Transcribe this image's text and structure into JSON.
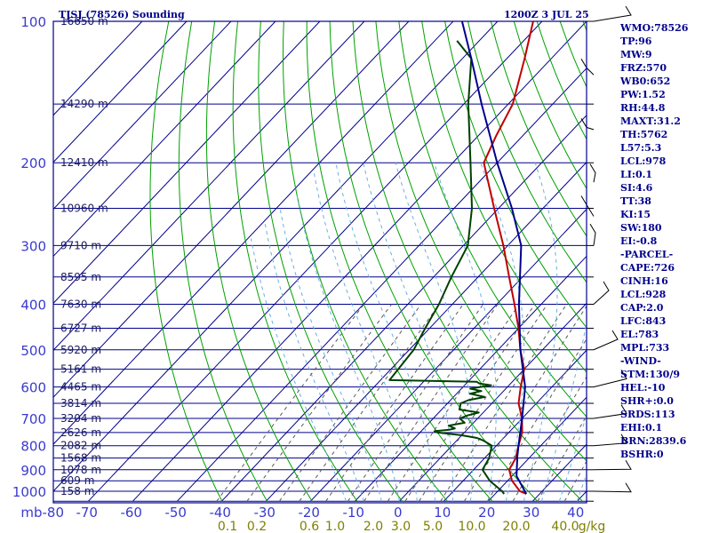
{
  "header": {
    "station": "TJSJ (78526) Sounding",
    "time": "1200Z  3 JUL 25"
  },
  "chart_data": {
    "type": "line",
    "chart_kind": "Skew-T log-P sounding",
    "y_axis": {
      "scale": "log",
      "pressure_ticks": [
        100,
        200,
        300,
        400,
        500,
        600,
        700,
        800,
        900,
        1000
      ],
      "ylim": [
        100,
        1050
      ]
    },
    "x_axis": {
      "temperature_ticks": [
        -80,
        -70,
        -60,
        -50,
        -40,
        -30,
        -20,
        -10,
        0,
        10,
        20,
        30,
        40
      ],
      "tick_labels": [
        "mb-80",
        "-70",
        "-60",
        "-50",
        "-40",
        "-30",
        "-20",
        "-10",
        "0",
        "10",
        "20",
        "30",
        "40"
      ],
      "mixing_ratio_labels": [
        "0.1",
        "0.2",
        "0.6",
        "1.0",
        "2.0",
        "3.0",
        "5.0",
        "10.0",
        "20.0",
        "40.0",
        "g/kg"
      ]
    },
    "heights": [
      {
        "p": 100,
        "label": "16650 m"
      },
      {
        "p": 150,
        "label": "14290 m"
      },
      {
        "p": 200,
        "label": "12410 m"
      },
      {
        "p": 250,
        "label": "10960 m"
      },
      {
        "p": 300,
        "label": "9710 m"
      },
      {
        "p": 350,
        "label": "8595 m"
      },
      {
        "p": 400,
        "label": "7630 m"
      },
      {
        "p": 450,
        "label": "6727 m"
      },
      {
        "p": 500,
        "label": "5920 m"
      },
      {
        "p": 550,
        "label": "5161 m"
      },
      {
        "p": 600,
        "label": "4465 m"
      },
      {
        "p": 650,
        "label": "3814 m"
      },
      {
        "p": 700,
        "label": "3204 m"
      },
      {
        "p": 750,
        "label": "2626 m"
      },
      {
        "p": 800,
        "label": "2082 m"
      },
      {
        "p": 850,
        "label": "1568 m"
      },
      {
        "p": 900,
        "label": "1078 m"
      },
      {
        "p": 950,
        "label": "609 m"
      },
      {
        "p": 1000,
        "label": "158 m"
      }
    ],
    "series": [
      {
        "role": "temperature",
        "color": "#c00000",
        "points": [
          [
            1013,
            27
          ],
          [
            1000,
            25
          ],
          [
            950,
            21
          ],
          [
            900,
            18
          ],
          [
            850,
            17
          ],
          [
            800,
            15
          ],
          [
            750,
            13
          ],
          [
            700,
            10
          ],
          [
            650,
            6
          ],
          [
            600,
            3
          ],
          [
            550,
            0
          ],
          [
            500,
            -5
          ],
          [
            450,
            -10
          ],
          [
            400,
            -16
          ],
          [
            350,
            -23
          ],
          [
            300,
            -31
          ],
          [
            250,
            -41
          ],
          [
            200,
            -53
          ],
          [
            175,
            -56
          ],
          [
            150,
            -59
          ],
          [
            120,
            -66
          ],
          [
            100,
            -72
          ]
        ]
      },
      {
        "role": "dewpoint",
        "color": "#004000",
        "points": [
          [
            1013,
            22
          ],
          [
            1000,
            21
          ],
          [
            950,
            16
          ],
          [
            900,
            12
          ],
          [
            850,
            11
          ],
          [
            800,
            9
          ],
          [
            780,
            6
          ],
          [
            770,
            4
          ],
          [
            760,
            0
          ],
          [
            750,
            -6
          ],
          [
            745,
            -7
          ],
          [
            740,
            -4
          ],
          [
            735,
            -3
          ],
          [
            725,
            -5
          ],
          [
            715,
            -2
          ],
          [
            700,
            -4
          ],
          [
            690,
            -3
          ],
          [
            680,
            -1
          ],
          [
            670,
            -6
          ],
          [
            650,
            -7
          ],
          [
            640,
            -6
          ],
          [
            630,
            -3
          ],
          [
            620,
            -7
          ],
          [
            612,
            -5
          ],
          [
            605,
            -8
          ],
          [
            595,
            -4
          ],
          [
            590,
            -7
          ],
          [
            585,
            -8
          ],
          [
            580,
            -28
          ],
          [
            500,
            -29
          ],
          [
            450,
            -31
          ],
          [
            400,
            -33
          ],
          [
            350,
            -36
          ],
          [
            300,
            -39
          ],
          [
            250,
            -46
          ],
          [
            200,
            -56
          ],
          [
            150,
            -69
          ],
          [
            120,
            -78
          ],
          [
            110,
            -85
          ]
        ]
      },
      {
        "role": "parcel",
        "color": "#00008b",
        "points": [
          [
            1013,
            27
          ],
          [
            928,
            21
          ],
          [
            843,
            17
          ],
          [
            800,
            15
          ],
          [
            700,
            10
          ],
          [
            600,
            4
          ],
          [
            500,
            -5
          ],
          [
            400,
            -15
          ],
          [
            300,
            -27
          ],
          [
            250,
            -37
          ],
          [
            200,
            -50
          ],
          [
            150,
            -66
          ],
          [
            120,
            -78
          ],
          [
            100,
            -88
          ]
        ]
      }
    ]
  },
  "indices": {
    "label": "",
    "items": [
      "WMO:78526",
      "TP:96",
      "MW:9",
      "FRZ:570",
      "WB0:652",
      "PW:1.52",
      "RH:44.8",
      "MAXT:31.2",
      "TH:5762",
      "L57:5.3",
      "LCL:978",
      "LI:0.1",
      "SI:4.6",
      "TT:38",
      "KI:15",
      "SW:180",
      "EI:-0.8",
      "-PARCEL-",
      "CAPE:726",
      "CINH:16",
      "LCL:928",
      "CAP:2.0",
      "LFC:843",
      "EL:783",
      "MPL:733",
      "-WIND-",
      "STM:130/9",
      "HEL:-10",
      "SHR+:0.0",
      "SRDS:113",
      "EHI:0.1",
      "BRN:2839.6",
      "BSHR:0"
    ]
  },
  "colors": {
    "frame": "#00008b",
    "grid": "#00008b",
    "dry_adiabat": "#00a000",
    "mixing_ratio": "#5a5a5a",
    "moist_adiabat": "#6ab0e0"
  }
}
